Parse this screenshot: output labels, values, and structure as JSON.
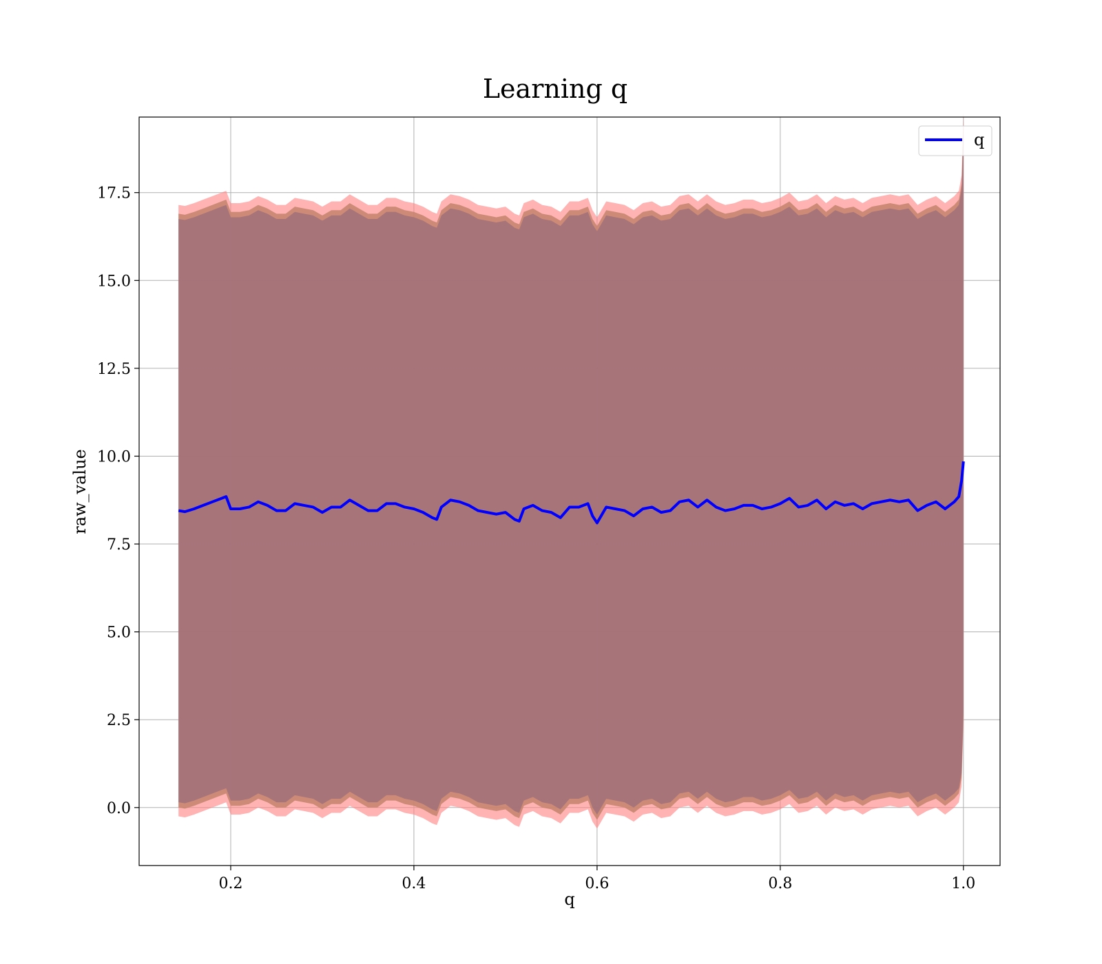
{
  "chart_data": {
    "type": "line",
    "title": "Learning q",
    "xlabel": "q",
    "ylabel": "raw_value",
    "xlim": [
      0.1,
      1.04
    ],
    "ylim": [
      -1.65,
      19.65
    ],
    "xticks": [
      0.2,
      0.4,
      0.6,
      0.8,
      1.0
    ],
    "xtick_labels": [
      "0.2",
      "0.4",
      "0.6",
      "0.8",
      "1.0"
    ],
    "yticks": [
      0.0,
      2.5,
      5.0,
      7.5,
      10.0,
      12.5,
      15.0,
      17.5
    ],
    "ytick_labels": [
      "0.0",
      "2.5",
      "5.0",
      "7.5",
      "10.0",
      "12.5",
      "15.0",
      "17.5"
    ],
    "grid": true,
    "legend": {
      "placement": "top-right",
      "entries": [
        {
          "name": "q",
          "color": "#0000ff"
        }
      ]
    },
    "colors": {
      "line": "#0000ff",
      "band_outer": "#ff8080",
      "band_middle": "#c4846c",
      "band_inner": "#a0707a"
    },
    "series": [
      {
        "name": "q",
        "x": [
          0.143,
          0.15,
          0.16,
          0.17,
          0.18,
          0.19,
          0.195,
          0.2,
          0.21,
          0.22,
          0.23,
          0.24,
          0.25,
          0.26,
          0.27,
          0.28,
          0.29,
          0.3,
          0.31,
          0.32,
          0.33,
          0.34,
          0.35,
          0.36,
          0.37,
          0.38,
          0.39,
          0.4,
          0.41,
          0.42,
          0.425,
          0.43,
          0.44,
          0.45,
          0.46,
          0.47,
          0.48,
          0.49,
          0.5,
          0.51,
          0.515,
          0.52,
          0.53,
          0.54,
          0.55,
          0.56,
          0.57,
          0.58,
          0.59,
          0.595,
          0.6,
          0.61,
          0.62,
          0.63,
          0.64,
          0.65,
          0.66,
          0.67,
          0.68,
          0.69,
          0.7,
          0.71,
          0.72,
          0.73,
          0.74,
          0.75,
          0.76,
          0.77,
          0.78,
          0.79,
          0.8,
          0.81,
          0.82,
          0.83,
          0.84,
          0.85,
          0.86,
          0.87,
          0.88,
          0.89,
          0.9,
          0.91,
          0.92,
          0.93,
          0.94,
          0.95,
          0.96,
          0.97,
          0.98,
          0.99,
          0.995,
          0.998,
          1.0
        ],
        "y": [
          8.45,
          8.42,
          8.5,
          8.6,
          8.7,
          8.8,
          8.85,
          8.5,
          8.5,
          8.55,
          8.7,
          8.6,
          8.45,
          8.45,
          8.65,
          8.6,
          8.55,
          8.4,
          8.55,
          8.55,
          8.75,
          8.6,
          8.45,
          8.45,
          8.65,
          8.65,
          8.55,
          8.5,
          8.4,
          8.25,
          8.2,
          8.55,
          8.75,
          8.7,
          8.6,
          8.45,
          8.4,
          8.35,
          8.4,
          8.2,
          8.15,
          8.5,
          8.6,
          8.45,
          8.4,
          8.25,
          8.55,
          8.55,
          8.65,
          8.3,
          8.1,
          8.55,
          8.5,
          8.45,
          8.3,
          8.5,
          8.55,
          8.4,
          8.45,
          8.7,
          8.75,
          8.55,
          8.75,
          8.55,
          8.45,
          8.5,
          8.6,
          8.6,
          8.5,
          8.55,
          8.65,
          8.8,
          8.55,
          8.6,
          8.75,
          8.5,
          8.7,
          8.6,
          8.65,
          8.5,
          8.65,
          8.7,
          8.75,
          8.7,
          8.75,
          8.45,
          8.6,
          8.7,
          8.5,
          8.7,
          8.85,
          9.3,
          9.85
        ]
      }
    ],
    "bands": [
      {
        "offsets_upper": 8.7,
        "offsets_lower": 8.7
      },
      {
        "offsets_upper": 8.45,
        "offsets_lower": 8.45
      },
      {
        "offsets_upper": 8.3,
        "offsets_lower": 8.3
      }
    ]
  }
}
